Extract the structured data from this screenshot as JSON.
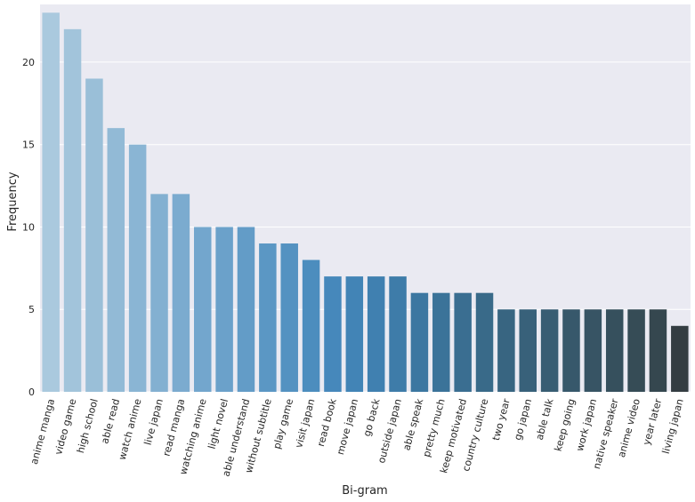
{
  "chart_data": {
    "type": "bar",
    "title": "",
    "xlabel": "Bi-gram",
    "ylabel": "Frequency",
    "ylim": [
      0,
      23.5
    ],
    "yticks": [
      0,
      5,
      10,
      15,
      20
    ],
    "grid": "horizontal",
    "legend": "none",
    "palette": "Blues_d",
    "background_color": "#eaeaf2",
    "categories": [
      "anime manga",
      "video game",
      "high school",
      "able read",
      "watch anime",
      "live japan",
      "read manga",
      "watching anime",
      "light novel",
      "able understand",
      "without subtitle",
      "play game",
      "visit japan",
      "read book",
      "move japan",
      "go back",
      "outside japan",
      "able speak",
      "pretty much",
      "keep motivated",
      "country culture",
      "two year",
      "go japan",
      "able talk",
      "keep going",
      "work japan",
      "native speaker",
      "anime video",
      "year later",
      "living japan"
    ],
    "values": [
      23,
      22,
      19,
      16,
      15,
      12,
      12,
      10,
      10,
      10,
      9,
      9,
      8,
      7,
      7,
      7,
      7,
      6,
      6,
      6,
      6,
      5,
      5,
      5,
      5,
      5,
      5,
      5,
      5,
      4
    ],
    "colors": [
      "#aac9de",
      "#a2c4db",
      "#9abfd8",
      "#92bad6",
      "#8ab5d4",
      "#83b0d1",
      "#7babcf",
      "#73a6cd",
      "#6ba1ca",
      "#639cc7",
      "#5b97c4",
      "#5492c1",
      "#4c8dbe",
      "#4688bb",
      "#4284b6",
      "#4080b0",
      "#3e7ca9",
      "#3c77a1",
      "#3b7399",
      "#3a6e91",
      "#396a89",
      "#386581",
      "#38617a",
      "#385d73",
      "#37586b",
      "#375464",
      "#36505d",
      "#364c56",
      "#35474f",
      "#343d42"
    ]
  }
}
